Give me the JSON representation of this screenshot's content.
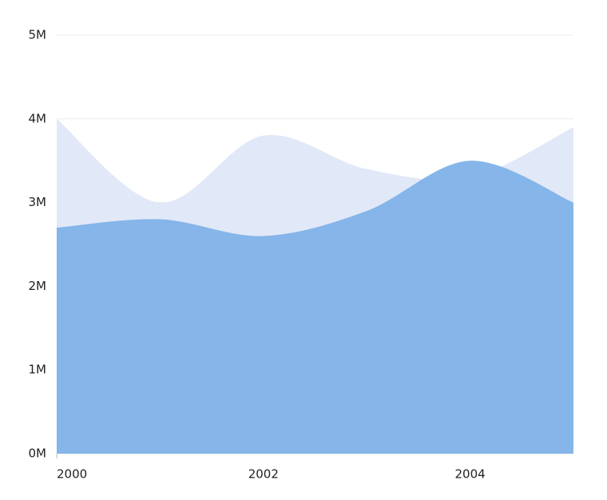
{
  "chart_data": {
    "type": "area",
    "x": [
      2000,
      2001,
      2002,
      2003,
      2004,
      2005
    ],
    "series": [
      {
        "color": "#dfe7f7",
        "values": [
          4000000,
          3000000,
          3800000,
          3400000,
          3300000,
          3900000
        ]
      },
      {
        "color": "#7fb2e8",
        "values": [
          2700000,
          2800000,
          2600000,
          2900000,
          3500000,
          3000000
        ]
      }
    ],
    "xlim": [
      2000,
      2005
    ],
    "xticks": [
      2000,
      2002,
      2004
    ],
    "ylim": [
      0,
      5000000
    ],
    "yticks": [
      {
        "value": 0,
        "label": "0M"
      },
      {
        "value": 1000000,
        "label": "1M"
      },
      {
        "value": 2000000,
        "label": "2M"
      },
      {
        "value": 3000000,
        "label": "3M"
      },
      {
        "value": 4000000,
        "label": "4M"
      },
      {
        "value": 5000000,
        "label": "5M"
      }
    ],
    "grid": true,
    "smooth": true
  }
}
